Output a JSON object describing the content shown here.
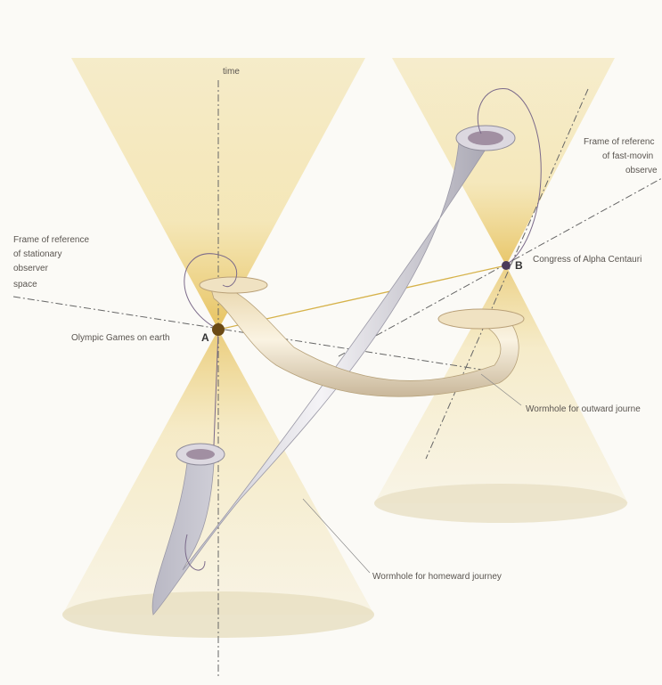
{
  "diagram": {
    "axes": {
      "time": "time",
      "space": "space"
    },
    "events": {
      "a": {
        "letter": "A",
        "label": "Olympic Games on earth"
      },
      "b": {
        "letter": "B",
        "label": "Congress of Alpha Centauri"
      }
    },
    "frames": {
      "stationary": [
        "Frame of reference",
        "of stationary",
        "observer"
      ],
      "fast_moving": [
        "Frame of referenc",
        "of fast-movin",
        "observe"
      ]
    },
    "wormholes": {
      "outward": "Wormhole for outward journe",
      "homeward": "Wormhole for homeward journey"
    }
  }
}
